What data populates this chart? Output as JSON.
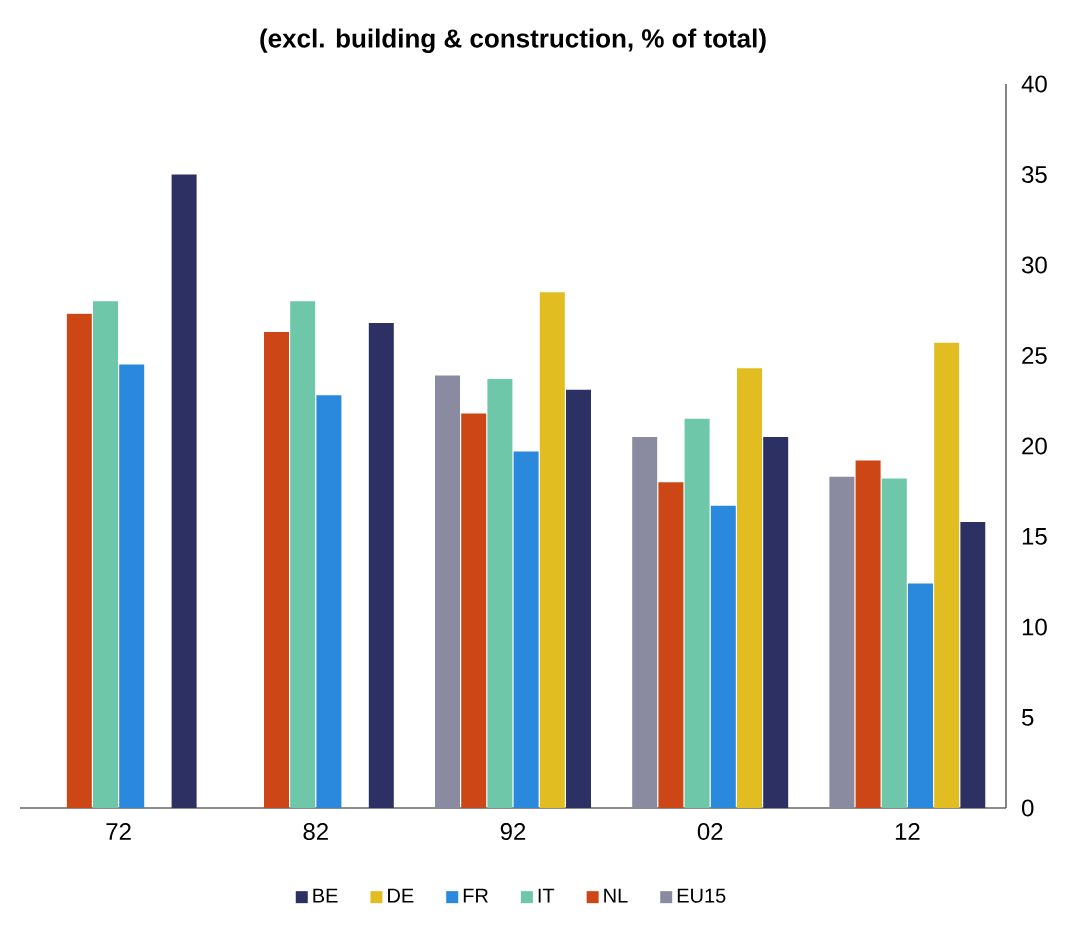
{
  "chart_data": {
    "type": "bar",
    "title": "(excl. building & construction, % of total)",
    "categories": [
      "72",
      "82",
      "92",
      "02",
      "12"
    ],
    "series": [
      {
        "name": "EU15",
        "color": "#8a8aa0",
        "values": [
          null,
          null,
          23.9,
          20.5,
          18.3
        ]
      },
      {
        "name": "NL",
        "color": "#cc4715",
        "values": [
          27.3,
          26.3,
          21.8,
          18.0,
          19.2
        ]
      },
      {
        "name": "IT",
        "color": "#6dc7a8",
        "values": [
          28.0,
          28.0,
          23.7,
          21.5,
          18.2
        ]
      },
      {
        "name": "FR",
        "color": "#2a88dd",
        "values": [
          24.5,
          22.8,
          19.7,
          16.7,
          12.4
        ]
      },
      {
        "name": "DE",
        "color": "#e1bd22",
        "values": [
          null,
          null,
          28.5,
          24.3,
          25.7
        ]
      },
      {
        "name": "BE",
        "color": "#2c3063",
        "values": [
          35.0,
          26.8,
          23.1,
          20.5,
          15.8
        ]
      }
    ],
    "ylim": [
      0,
      40
    ],
    "yticks": [
      0,
      5,
      10,
      15,
      20,
      25,
      30,
      35,
      40
    ],
    "grid": false,
    "legend": "bottom"
  }
}
